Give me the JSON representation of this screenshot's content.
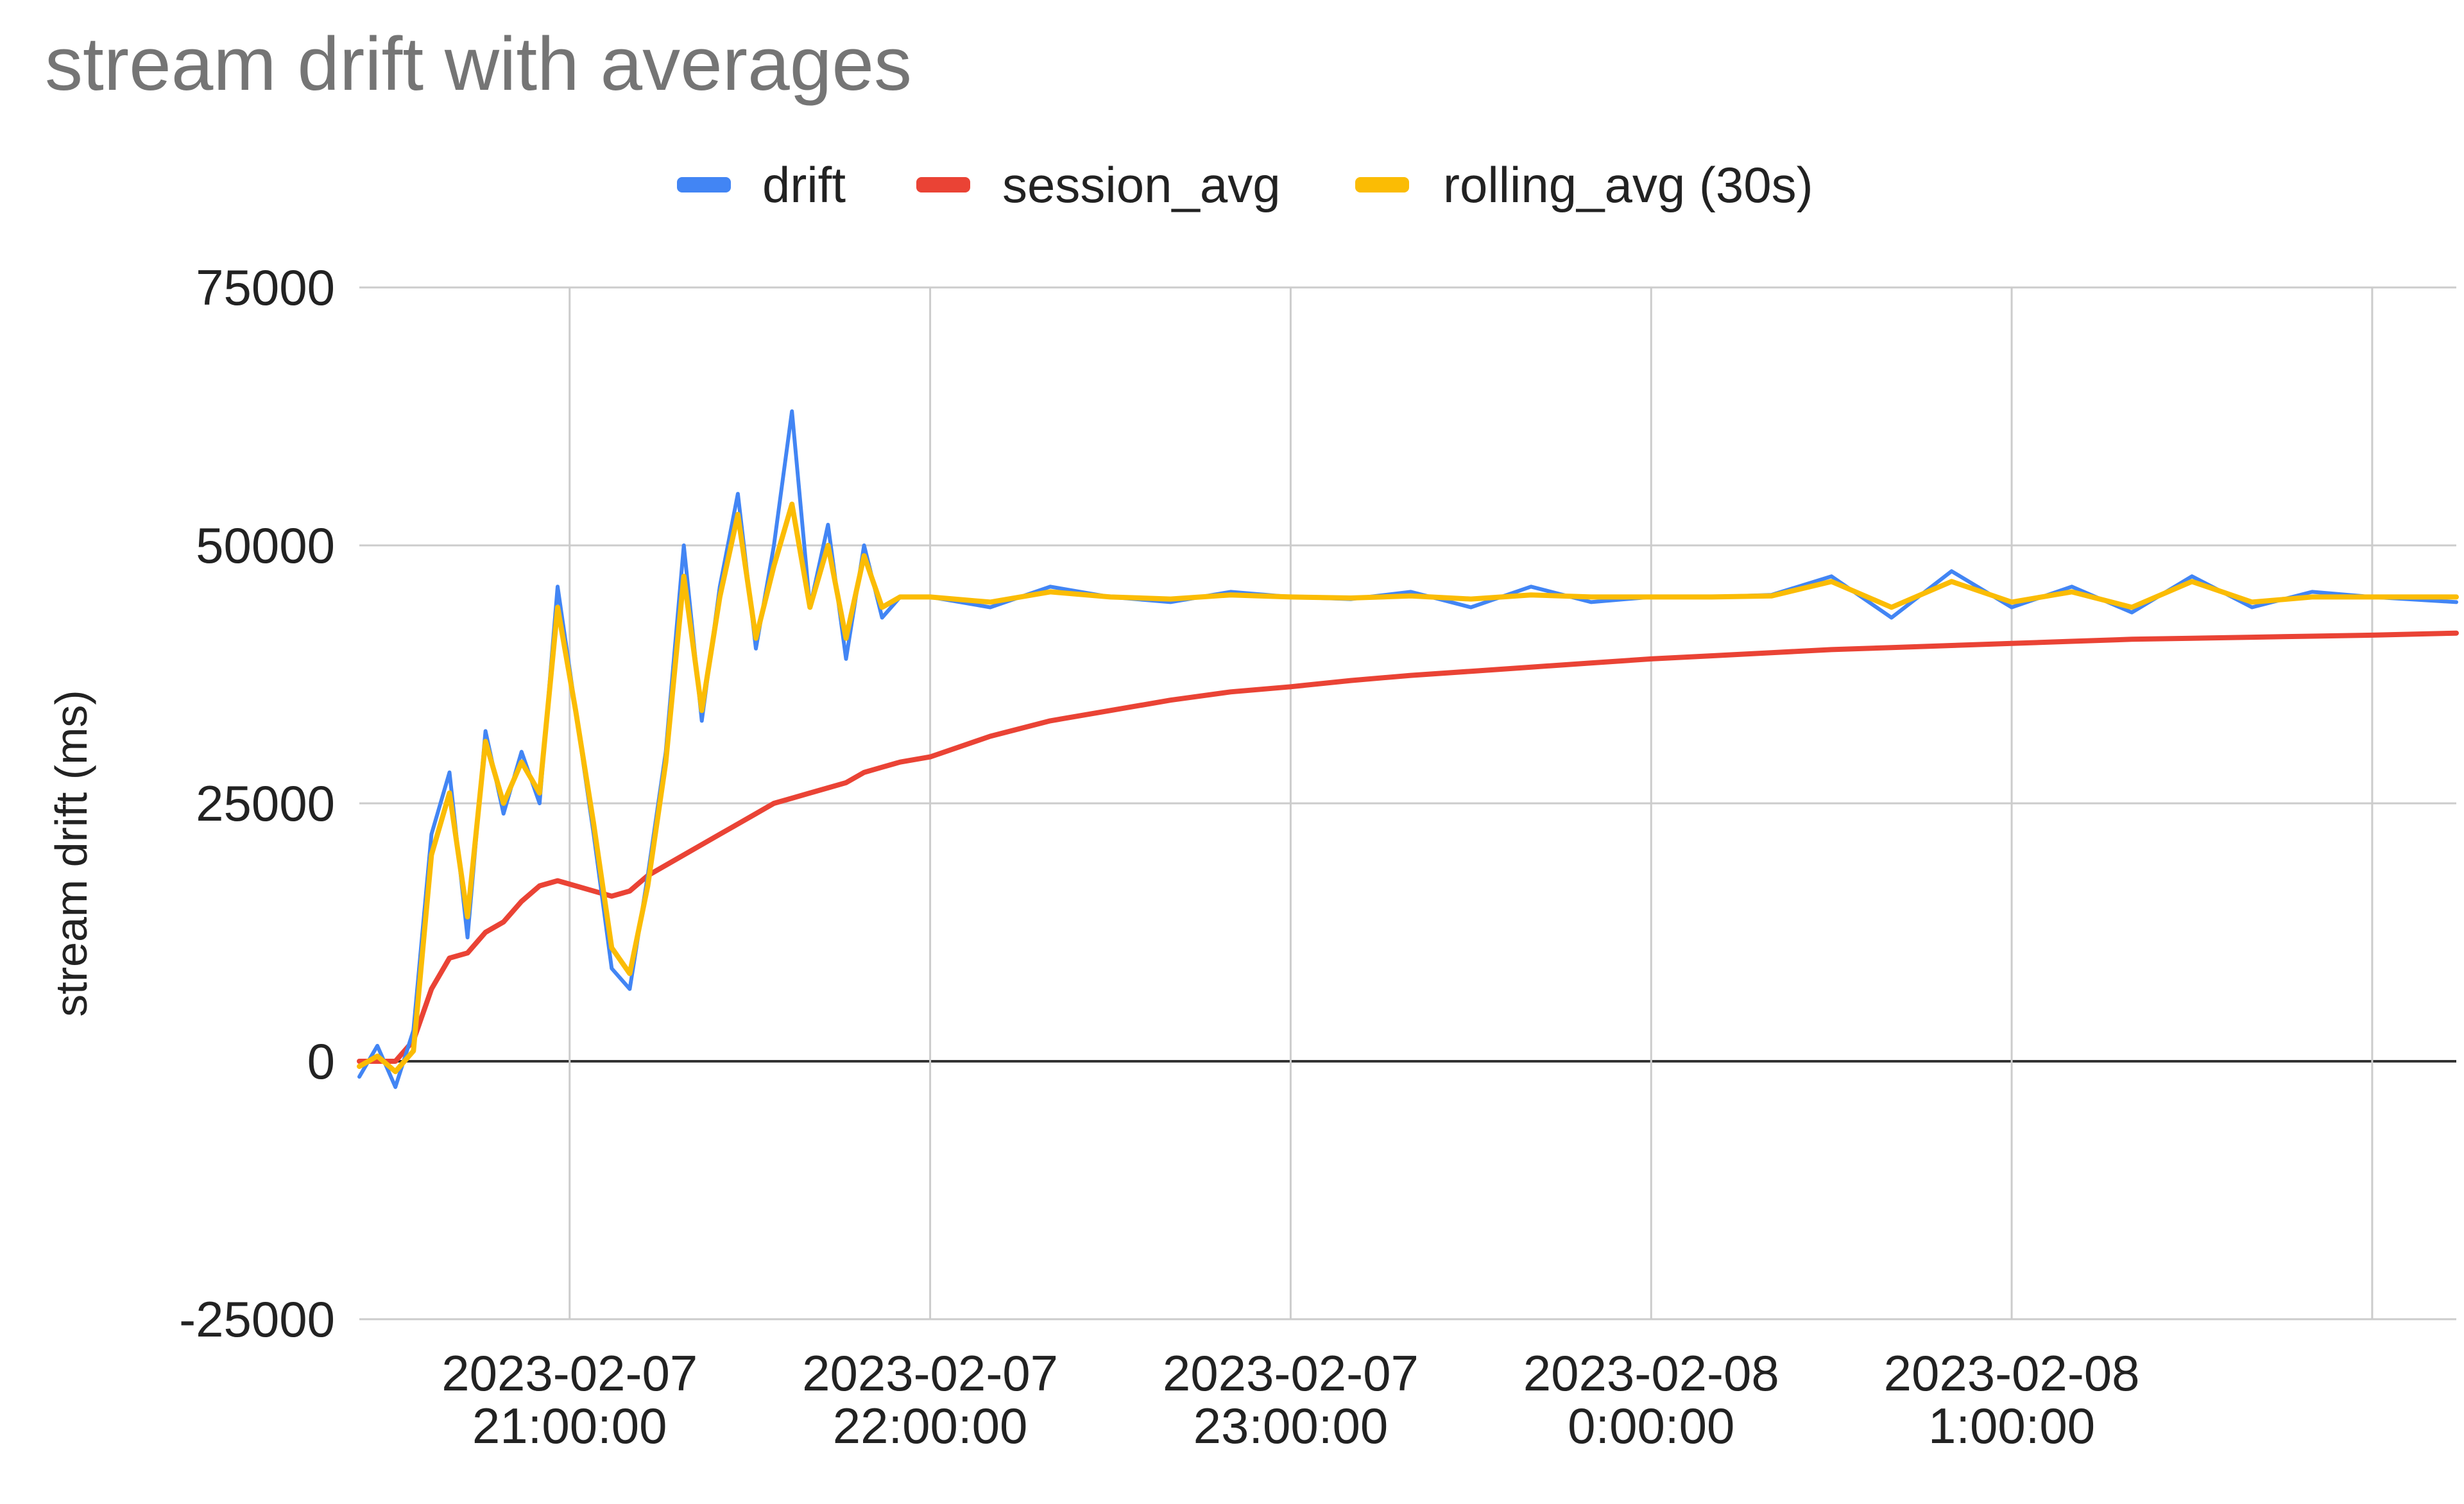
{
  "chart_data": {
    "type": "line",
    "title": "stream drift with averages",
    "xlabel": "",
    "ylabel": "stream drift (ms)",
    "ylim": [
      -25000,
      75000
    ],
    "yticks": [
      -25000,
      0,
      25000,
      50000,
      75000
    ],
    "ytick_labels": [
      "-25000",
      "0",
      "25000",
      "50000",
      "75000"
    ],
    "xlim": [
      "2023-02-07 20:25",
      "2023-02-08 02:14"
    ],
    "xticks": [
      "2023-02-07 21:00",
      "2023-02-07 22:00",
      "2023-02-07 23:00",
      "2023-02-08 00:00",
      "2023-02-08 01:00",
      "2023-02-08 02:00"
    ],
    "xtick_labels": [
      [
        "2023-02-07",
        "21:00:00"
      ],
      [
        "2023-02-07",
        "22:00:00"
      ],
      [
        "2023-02-07",
        "23:00:00"
      ],
      [
        "2023-02-08",
        "0:00:00"
      ],
      [
        "2023-02-08",
        "1:00:00"
      ],
      [
        "",
        ""
      ]
    ],
    "grid": true,
    "legend_position": "top",
    "x": [
      "2023-02-07 20:25",
      "2023-02-07 20:28",
      "2023-02-07 20:31",
      "2023-02-07 20:34",
      "2023-02-07 20:37",
      "2023-02-07 20:40",
      "2023-02-07 20:43",
      "2023-02-07 20:46",
      "2023-02-07 20:49",
      "2023-02-07 20:52",
      "2023-02-07 20:55",
      "2023-02-07 20:58",
      "2023-02-07 21:01",
      "2023-02-07 21:04",
      "2023-02-07 21:07",
      "2023-02-07 21:10",
      "2023-02-07 21:13",
      "2023-02-07 21:16",
      "2023-02-07 21:19",
      "2023-02-07 21:22",
      "2023-02-07 21:25",
      "2023-02-07 21:28",
      "2023-02-07 21:31",
      "2023-02-07 21:34",
      "2023-02-07 21:37",
      "2023-02-07 21:40",
      "2023-02-07 21:43",
      "2023-02-07 21:46",
      "2023-02-07 21:49",
      "2023-02-07 21:52",
      "2023-02-07 21:55",
      "2023-02-07 22:00",
      "2023-02-07 22:10",
      "2023-02-07 22:20",
      "2023-02-07 22:30",
      "2023-02-07 22:40",
      "2023-02-07 22:50",
      "2023-02-07 23:00",
      "2023-02-07 23:10",
      "2023-02-07 23:20",
      "2023-02-07 23:30",
      "2023-02-07 23:40",
      "2023-02-07 23:50",
      "2023-02-08 00:00",
      "2023-02-08 00:10",
      "2023-02-08 00:20",
      "2023-02-08 00:30",
      "2023-02-08 00:40",
      "2023-02-08 00:50",
      "2023-02-08 01:00",
      "2023-02-08 01:10",
      "2023-02-08 01:20",
      "2023-02-08 01:30",
      "2023-02-08 01:40",
      "2023-02-08 01:50",
      "2023-02-08 02:00",
      "2023-02-08 02:14"
    ],
    "series": [
      {
        "name": "drift",
        "color": "#4285f4",
        "values": [
          -1500,
          1500,
          -2500,
          3000,
          22000,
          28000,
          12000,
          32000,
          24000,
          30000,
          25000,
          46000,
          34000,
          22000,
          9000,
          7000,
          18000,
          30000,
          50000,
          33000,
          46000,
          55000,
          40000,
          50000,
          63000,
          44000,
          52000,
          39000,
          50000,
          43000,
          45000,
          45000,
          44000,
          46000,
          45000,
          44500,
          45500,
          45000,
          44800,
          45500,
          44000,
          46000,
          44500,
          45000,
          45000,
          45200,
          47000,
          43000,
          47500,
          44000,
          46000,
          43500,
          47000,
          44000,
          45500,
          45000,
          44500
        ]
      },
      {
        "name": "session_avg",
        "color": "#ea4335",
        "values": [
          0,
          0,
          0,
          2000,
          7000,
          10000,
          10500,
          12500,
          13500,
          15500,
          17000,
          17500,
          17000,
          16500,
          16000,
          16500,
          18000,
          19000,
          20000,
          21000,
          22000,
          23000,
          24000,
          25000,
          25500,
          26000,
          26500,
          27000,
          28000,
          28500,
          29000,
          29500,
          31500,
          33000,
          34000,
          35000,
          35800,
          36300,
          36900,
          37400,
          37800,
          38200,
          38600,
          39000,
          39300,
          39600,
          39900,
          40100,
          40300,
          40500,
          40700,
          40900,
          41000,
          41100,
          41200,
          41300,
          41500
        ]
      },
      {
        "name": "rolling_avg (30s)",
        "color": "#fbbc04",
        "values": [
          -500,
          500,
          -1000,
          1000,
          20000,
          26000,
          14000,
          31000,
          25000,
          29000,
          26000,
          44000,
          34000,
          23000,
          11000,
          8500,
          17000,
          29000,
          47000,
          34000,
          45000,
          53000,
          41000,
          48000,
          54000,
          44000,
          50000,
          41000,
          49000,
          44000,
          45000,
          45000,
          44500,
          45500,
          45000,
          44800,
          45200,
          45000,
          44900,
          45100,
          44800,
          45200,
          45000,
          45000,
          45000,
          45100,
          46500,
          44000,
          46500,
          44500,
          45500,
          44000,
          46500,
          44500,
          45000,
          45000,
          45000
        ]
      }
    ]
  }
}
